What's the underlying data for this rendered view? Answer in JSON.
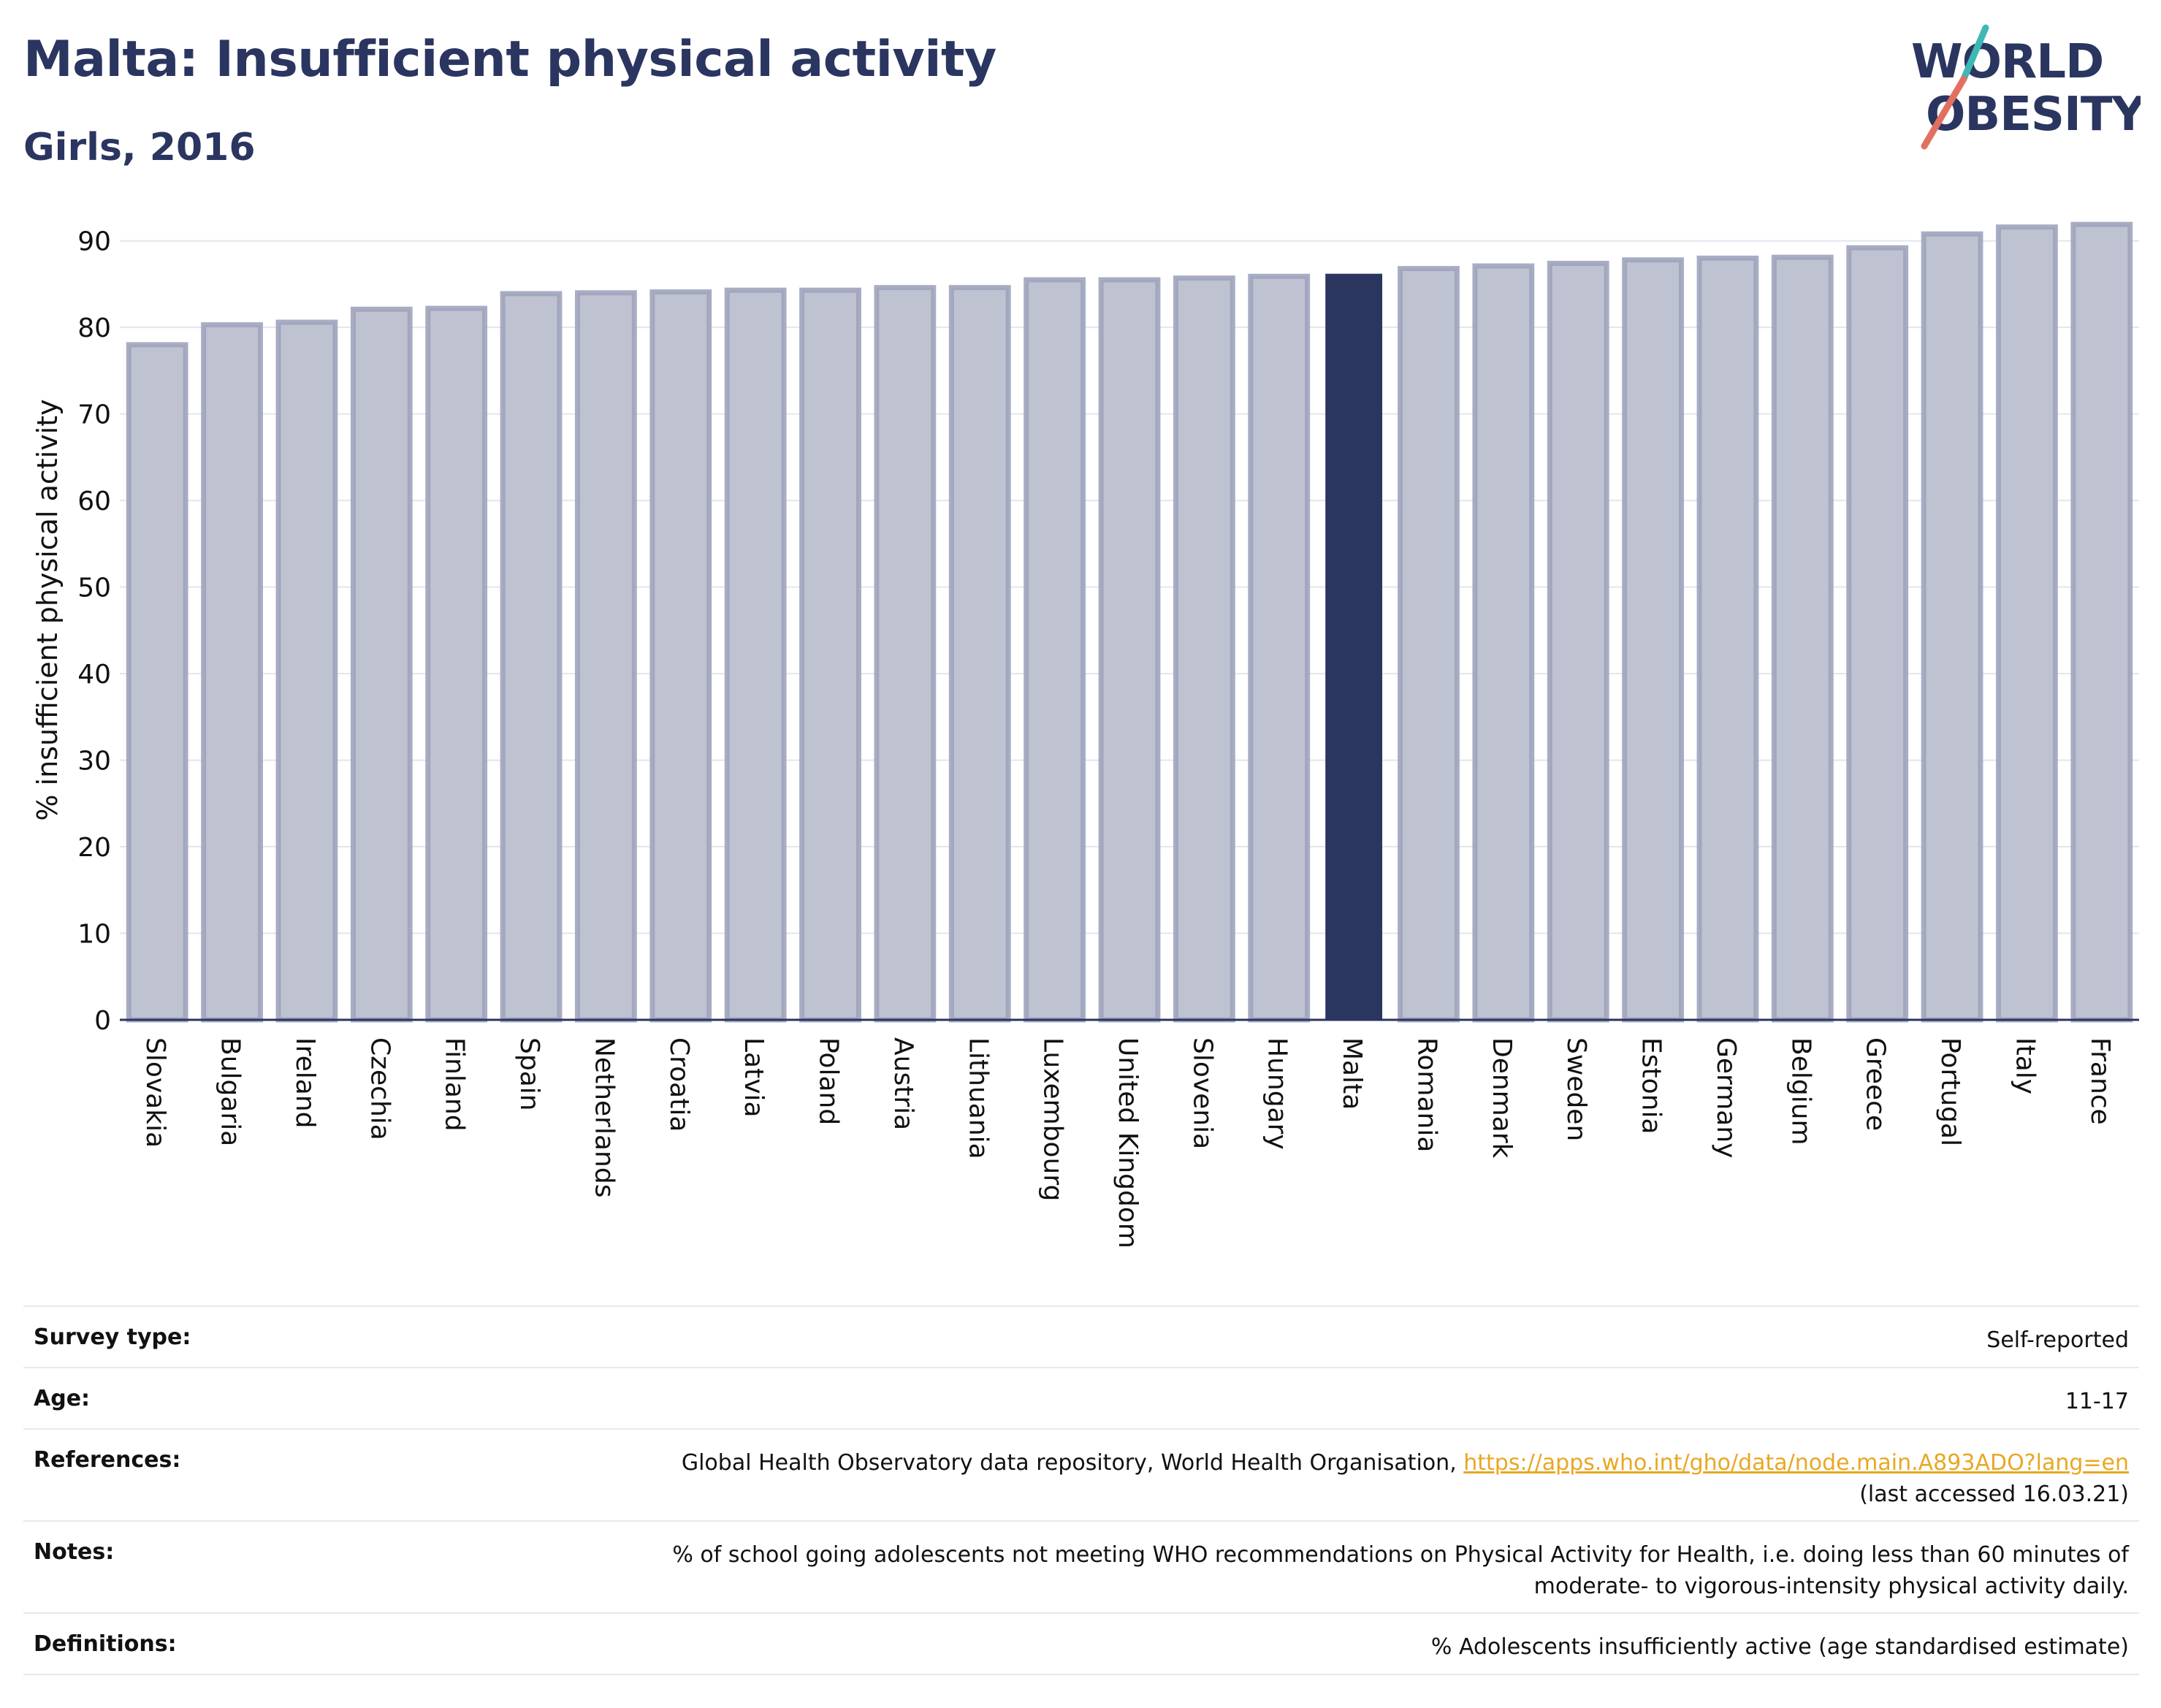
{
  "header": {
    "title": "Malta: Insufficient physical activity",
    "subtitle": "Girls, 2016"
  },
  "logo": {
    "line1": "WORLD",
    "line2": "OBESITY",
    "colors": {
      "text": "#2a3560",
      "slash_red": "#e2705f",
      "slash_teal": "#3db8b4"
    }
  },
  "colors": {
    "title": "#2a3560",
    "bar_default": "#bfc3d1",
    "bar_default_outline": "#9ea4bc",
    "bar_highlight": "#2a3560",
    "link": "#e8a823"
  },
  "chart_data": {
    "type": "bar",
    "ylabel": "% insufficient physical activity",
    "ylim": [
      0,
      92
    ],
    "yticks": [
      0,
      10,
      20,
      30,
      40,
      50,
      60,
      70,
      80,
      90
    ],
    "grid": true,
    "highlight": "Malta",
    "categories": [
      "Slovakia",
      "Bulgaria",
      "Ireland",
      "Czechia",
      "Finland",
      "Spain",
      "Netherlands",
      "Croatia",
      "Latvia",
      "Poland",
      "Austria",
      "Lithuania",
      "Luxembourg",
      "United Kingdom",
      "Slovenia",
      "Hungary",
      "Malta",
      "Romania",
      "Denmark",
      "Sweden",
      "Estonia",
      "Germany",
      "Belgium",
      "Greece",
      "Portugal",
      "Italy",
      "France"
    ],
    "values": [
      78.0,
      80.3,
      80.6,
      82.1,
      82.2,
      83.9,
      84.0,
      84.1,
      84.3,
      84.3,
      84.6,
      84.6,
      85.5,
      85.5,
      85.7,
      85.9,
      86.2,
      86.8,
      87.1,
      87.4,
      87.8,
      88.0,
      88.1,
      89.2,
      90.8,
      91.6,
      91.9
    ]
  },
  "info": {
    "survey_type_label": "Survey type:",
    "survey_type_value": "Self-reported",
    "age_label": "Age:",
    "age_value": "11-17",
    "references_label": "References:",
    "references_text": "Global Health Observatory data repository, World Health Organisation, ",
    "references_link": "https://apps.who.int/gho/data/node.main.A893ADO?lang=en",
    "references_accessed": "(last accessed 16.03.21)",
    "notes_label": "Notes:",
    "notes_line1": "% of school going adolescents not meeting WHO recommendations on Physical Activity for Health, i.e. doing less than 60 minutes of",
    "notes_line2": "moderate- to vigorous-intensity physical activity daily.",
    "definitions_label": "Definitions:",
    "definitions_value": "% Adolescents insufficiently active (age standardised estimate)"
  }
}
